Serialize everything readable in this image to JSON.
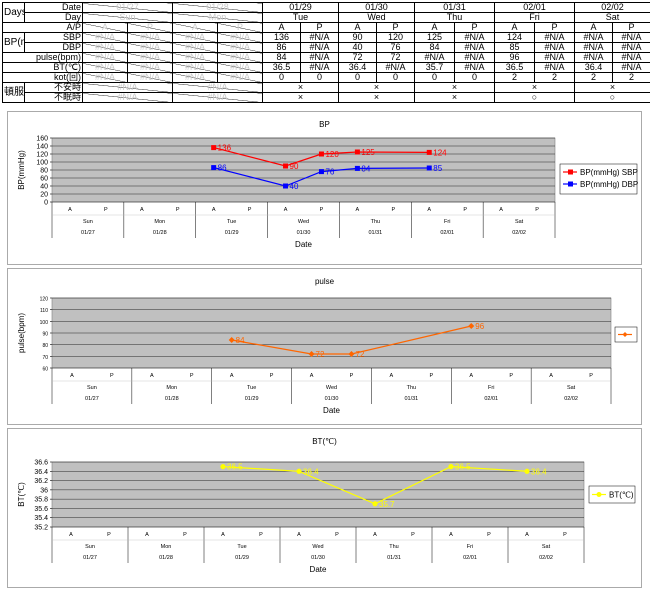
{
  "table": {
    "row_labels": {
      "days": "Days",
      "date": "Date",
      "day": "Day",
      "ap": "A/P",
      "bp": "BP(mmHg)",
      "sbp": "SBP",
      "dbp": "DBP",
      "pulse": "pulse(bpm)",
      "bt": "BT(℃)",
      "kot": "kot(回)",
      "med": "頓服",
      "anxiety": "不安時",
      "insomnia": "不眠時"
    },
    "hidden_days": [
      {
        "date": "01/27",
        "day": "Sun"
      },
      {
        "date": "01/28",
        "day": "Mon"
      }
    ],
    "days": [
      {
        "date": "01/29",
        "day": "Tue",
        "sbp": [
          "136",
          "#N/A"
        ],
        "dbp": [
          "86",
          "#N/A"
        ],
        "pulse": [
          "84",
          "#N/A"
        ],
        "bt": [
          "36.5",
          "#N/A"
        ],
        "kot": [
          "0",
          "0"
        ],
        "anxiety": "×",
        "insomnia": "×"
      },
      {
        "date": "01/30",
        "day": "Wed",
        "sbp": [
          "90",
          "120"
        ],
        "dbp": [
          "40",
          "76"
        ],
        "pulse": [
          "72",
          "72"
        ],
        "bt": [
          "36.4",
          "#N/A"
        ],
        "kot": [
          "0",
          "0"
        ],
        "anxiety": "×",
        "insomnia": "×"
      },
      {
        "date": "01/31",
        "day": "Thu",
        "sbp": [
          "125",
          "#N/A"
        ],
        "dbp": [
          "84",
          "#N/A"
        ],
        "pulse": [
          "#N/A",
          "#N/A"
        ],
        "bt": [
          "35.7",
          "#N/A"
        ],
        "kot": [
          "0",
          "0"
        ],
        "anxiety": "×",
        "insomnia": "×"
      },
      {
        "date": "02/01",
        "day": "Fri",
        "sbp": [
          "124",
          "#N/A"
        ],
        "dbp": [
          "85",
          "#N/A"
        ],
        "pulse": [
          "96",
          "#N/A"
        ],
        "bt": [
          "36.5",
          "#N/A"
        ],
        "kot": [
          "2",
          "2"
        ],
        "anxiety": "×",
        "insomnia": "○"
      },
      {
        "date": "02/02",
        "day": "Sat",
        "sbp": [
          "#N/A",
          "#N/A"
        ],
        "dbp": [
          "#N/A",
          "#N/A"
        ],
        "pulse": [
          "#N/A",
          "#N/A"
        ],
        "bt": [
          "36.4",
          "#N/A"
        ],
        "kot": [
          "2",
          "2"
        ],
        "anxiety": "×",
        "insomnia": "○"
      }
    ],
    "hidden_cell": "#N/A",
    "ap_labels": [
      "A",
      "P"
    ]
  },
  "chart_data": [
    {
      "type": "line",
      "title": "BP",
      "ylabel": "BP(mmHg)",
      "xlabel": "Date",
      "ylim": [
        0,
        160
      ],
      "yticks": [
        0,
        20,
        40,
        60,
        80,
        100,
        120,
        140,
        160
      ],
      "slots": [
        "A",
        "P"
      ],
      "days": [
        {
          "date": "01/27",
          "day": "Sun"
        },
        {
          "date": "01/28",
          "day": "Mon"
        },
        {
          "date": "01/29",
          "day": "Tue"
        },
        {
          "date": "01/30",
          "day": "Wed"
        },
        {
          "date": "01/31",
          "day": "Thu"
        },
        {
          "date": "02/01",
          "day": "Fri"
        },
        {
          "date": "02/02",
          "day": "Sat"
        }
      ],
      "grid": true,
      "legend": "right",
      "series": [
        {
          "name": "BP(mmHg) SBP",
          "color": "#ff0000",
          "marker": "square",
          "values": [
            null,
            null,
            null,
            null,
            136,
            null,
            90,
            120,
            125,
            null,
            124,
            null,
            null,
            null
          ]
        },
        {
          "name": "BP(mmHg) DBP",
          "color": "#0000ff",
          "marker": "square",
          "values": [
            null,
            null,
            null,
            null,
            86,
            null,
            40,
            76,
            84,
            null,
            85,
            null,
            null,
            null
          ]
        }
      ]
    },
    {
      "type": "line",
      "title": "pulse",
      "ylabel": "pulse(bpm)",
      "xlabel": "Date",
      "ylim": [
        60,
        120
      ],
      "yticks": [
        60,
        70,
        80,
        90,
        100,
        110,
        120
      ],
      "slots": [
        "A",
        "P"
      ],
      "days": [
        {
          "date": "01/27",
          "day": "Sun"
        },
        {
          "date": "01/28",
          "day": "Mon"
        },
        {
          "date": "01/29",
          "day": "Tue"
        },
        {
          "date": "01/30",
          "day": "Wed"
        },
        {
          "date": "01/31",
          "day": "Thu"
        },
        {
          "date": "02/01",
          "day": "Fri"
        },
        {
          "date": "02/02",
          "day": "Sat"
        }
      ],
      "grid": true,
      "legend": "right",
      "series": [
        {
          "color": "#ff6600",
          "marker": "diamond",
          "values": [
            null,
            null,
            null,
            null,
            84,
            null,
            72,
            72,
            null,
            null,
            96,
            null,
            null,
            null
          ]
        }
      ]
    },
    {
      "type": "line",
      "title": "BT(℃)",
      "ylabel": "BT(℃)",
      "xlabel": "Date",
      "ylim": [
        35.2,
        36.6
      ],
      "yticks": [
        35.2,
        35.4,
        35.6,
        35.8,
        36.0,
        36.2,
        36.4,
        36.6
      ],
      "slots": [
        "A",
        "P"
      ],
      "days": [
        {
          "date": "01/27",
          "day": "Sun"
        },
        {
          "date": "01/28",
          "day": "Mon"
        },
        {
          "date": "01/29",
          "day": "Tue"
        },
        {
          "date": "01/30",
          "day": "Wed"
        },
        {
          "date": "01/31",
          "day": "Thu"
        },
        {
          "date": "02/01",
          "day": "Fri"
        },
        {
          "date": "02/02",
          "day": "Sat"
        }
      ],
      "grid": true,
      "legend": "right",
      "series": [
        {
          "name": "BT(℃)",
          "color": "#ffff00",
          "marker": "circle",
          "values": [
            null,
            null,
            null,
            null,
            36.5,
            null,
            36.4,
            null,
            35.7,
            null,
            36.5,
            null,
            36.4,
            null
          ]
        }
      ]
    }
  ]
}
